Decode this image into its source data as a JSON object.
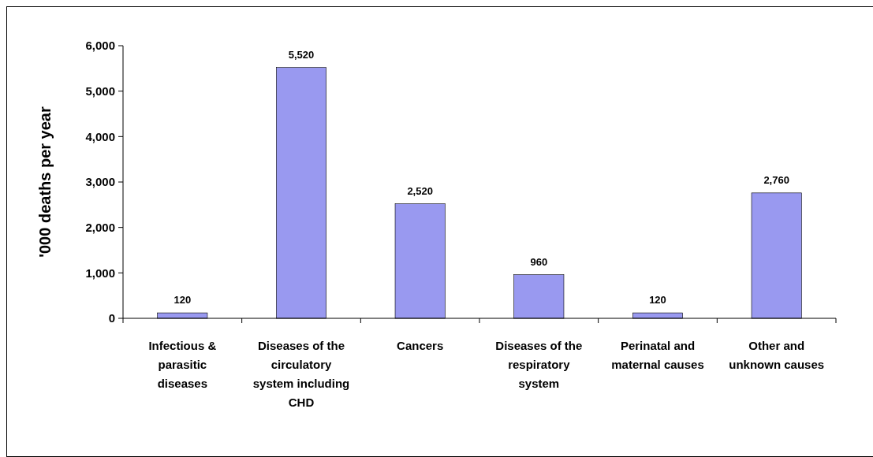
{
  "chart_data": {
    "type": "bar",
    "ylabel": "'000 deaths per year",
    "categories": [
      "Infectious & parasitic diseases",
      "Diseases of the circulatory system including CHD",
      "Cancers",
      "Diseases of the respiratory system",
      "Perinatal and maternal causes",
      "Other and unknown causes"
    ],
    "values": [
      120,
      5520,
      2520,
      960,
      120,
      2760
    ],
    "value_labels": [
      "120",
      "5,520",
      "2,520",
      "960",
      "120",
      "2,760"
    ],
    "color": "#9999f0",
    "ylim": [
      0,
      6000
    ],
    "yticks": [
      {
        "value": 0,
        "label": "0"
      },
      {
        "value": 1000,
        "label": "1,000"
      },
      {
        "value": 2000,
        "label": "2,000"
      },
      {
        "value": 3000,
        "label": "3,000"
      },
      {
        "value": 4000,
        "label": "4,000"
      },
      {
        "value": 5000,
        "label": "5,000"
      },
      {
        "value": 6000,
        "label": "6,000"
      }
    ]
  }
}
